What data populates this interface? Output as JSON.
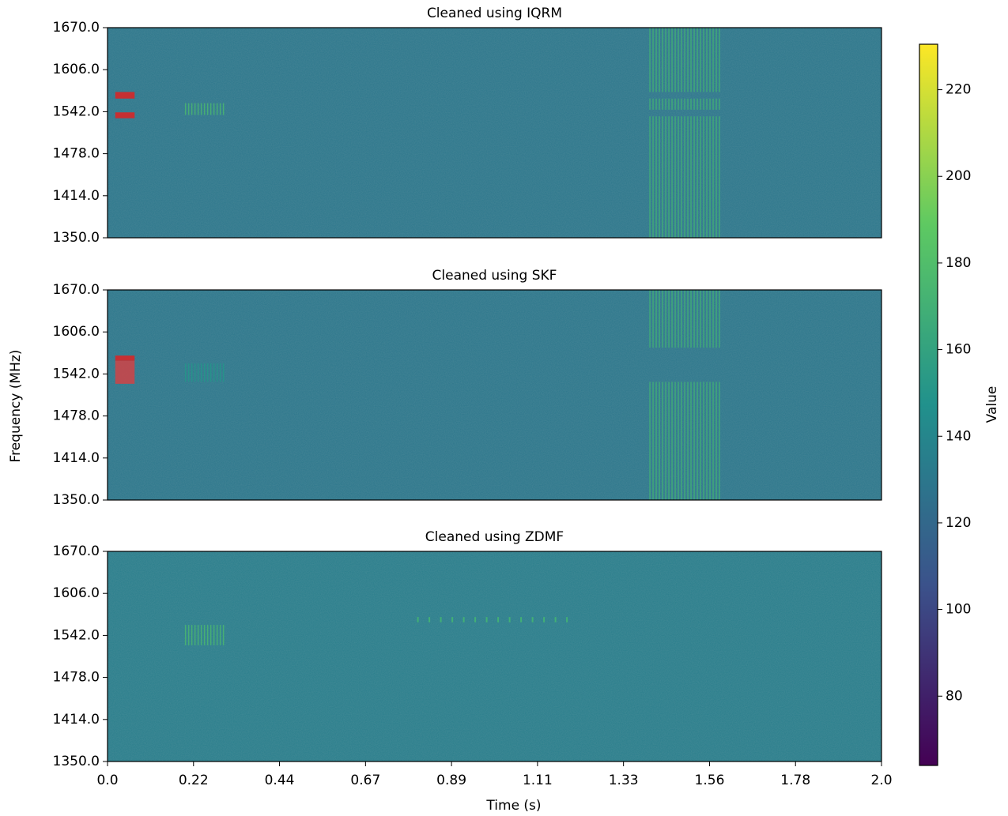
{
  "chart_data": [
    {
      "type": "heatmap",
      "title": "Cleaned using IQRM",
      "xlim": [
        0,
        2
      ],
      "ylim": [
        1350,
        1670
      ],
      "yticks": [
        {
          "value": 1350,
          "label": "1350.0"
        },
        {
          "value": 1414,
          "label": "1414.0"
        },
        {
          "value": 1478,
          "label": "1478.0"
        },
        {
          "value": 1542,
          "label": "1542.0"
        },
        {
          "value": 1606,
          "label": "1606.0"
        },
        {
          "value": 1670,
          "label": "1670.0"
        }
      ],
      "background": 130,
      "features": [
        {
          "x": [
            1.4,
            1.585
          ],
          "y": [
            1350,
            1535
          ],
          "value": 170,
          "pattern": "stripes"
        },
        {
          "x": [
            1.4,
            1.585
          ],
          "y": [
            1545,
            1562
          ],
          "value": 170,
          "pattern": "stripes"
        },
        {
          "x": [
            1.4,
            1.585
          ],
          "y": [
            1572,
            1670
          ],
          "value": 170,
          "pattern": "stripes"
        },
        {
          "x": [
            0.2,
            0.3
          ],
          "y": [
            1537,
            1555
          ],
          "value": 175,
          "pattern": "stripes"
        }
      ],
      "masks": [
        {
          "x": [
            0.02,
            0.07
          ],
          "y": [
            1562,
            1572
          ],
          "color": "#d62728"
        },
        {
          "x": [
            0.02,
            0.07
          ],
          "y": [
            1532,
            1541
          ],
          "color": "#d62728"
        }
      ]
    },
    {
      "type": "heatmap",
      "title": "Cleaned using SKF",
      "xlim": [
        0,
        2
      ],
      "ylim": [
        1350,
        1670
      ],
      "yticks": [
        {
          "value": 1350,
          "label": "1350.0"
        },
        {
          "value": 1414,
          "label": "1414.0"
        },
        {
          "value": 1478,
          "label": "1478.0"
        },
        {
          "value": 1542,
          "label": "1542.0"
        },
        {
          "value": 1606,
          "label": "1606.0"
        },
        {
          "value": 1670,
          "label": "1670.0"
        }
      ],
      "background": 130,
      "features": [
        {
          "x": [
            1.4,
            1.585
          ],
          "y": [
            1350,
            1530
          ],
          "value": 170,
          "pattern": "stripes"
        },
        {
          "x": [
            1.4,
            1.585
          ],
          "y": [
            1582,
            1670
          ],
          "value": 170,
          "pattern": "stripes"
        },
        {
          "x": [
            0.2,
            0.3
          ],
          "y": [
            1530,
            1558
          ],
          "value": 150,
          "pattern": "stripes"
        }
      ],
      "masks": [
        {
          "x": [
            0.02,
            0.07
          ],
          "y": [
            1562,
            1570
          ],
          "color": "#d62728"
        },
        {
          "x": [
            0.02,
            0.07
          ],
          "y": [
            1527,
            1562
          ],
          "color": "#c8464a"
        }
      ]
    },
    {
      "type": "heatmap",
      "title": "Cleaned using ZDMF",
      "xlim": [
        0,
        2
      ],
      "ylim": [
        1350,
        1670
      ],
      "xticks": [
        {
          "value": 0,
          "label": "0.0"
        },
        {
          "value": 0.2222,
          "label": "0.22"
        },
        {
          "value": 0.4444,
          "label": "0.44"
        },
        {
          "value": 0.6667,
          "label": "0.67"
        },
        {
          "value": 0.8889,
          "label": "0.89"
        },
        {
          "value": 1.1111,
          "label": "1.11"
        },
        {
          "value": 1.3333,
          "label": "1.33"
        },
        {
          "value": 1.5556,
          "label": "1.56"
        },
        {
          "value": 1.7778,
          "label": "1.78"
        },
        {
          "value": 2,
          "label": "2.0"
        }
      ],
      "yticks": [
        {
          "value": 1350,
          "label": "1350.0"
        },
        {
          "value": 1414,
          "label": "1414.0"
        },
        {
          "value": 1478,
          "label": "1478.0"
        },
        {
          "value": 1542,
          "label": "1542.0"
        },
        {
          "value": 1606,
          "label": "1606.0"
        },
        {
          "value": 1670,
          "label": "1670.0"
        }
      ],
      "background": 135,
      "features": [
        {
          "x": [
            0.2,
            0.3
          ],
          "y": [
            1527,
            1558
          ],
          "value": 175,
          "pattern": "stripes"
        },
        {
          "x": [
            0.8,
            1.2
          ],
          "y": [
            1562,
            1570
          ],
          "value": 170,
          "pattern": "dashes"
        }
      ],
      "masks": []
    }
  ],
  "figure": {
    "xlabel": "Time (s)",
    "ylabel": "Frequency (MHz)",
    "colorbar": {
      "label": "Value",
      "clim": [
        64,
        230.5
      ],
      "ticks": [
        80,
        100,
        120,
        140,
        160,
        180,
        200,
        220
      ],
      "colormap": "viridis"
    }
  }
}
